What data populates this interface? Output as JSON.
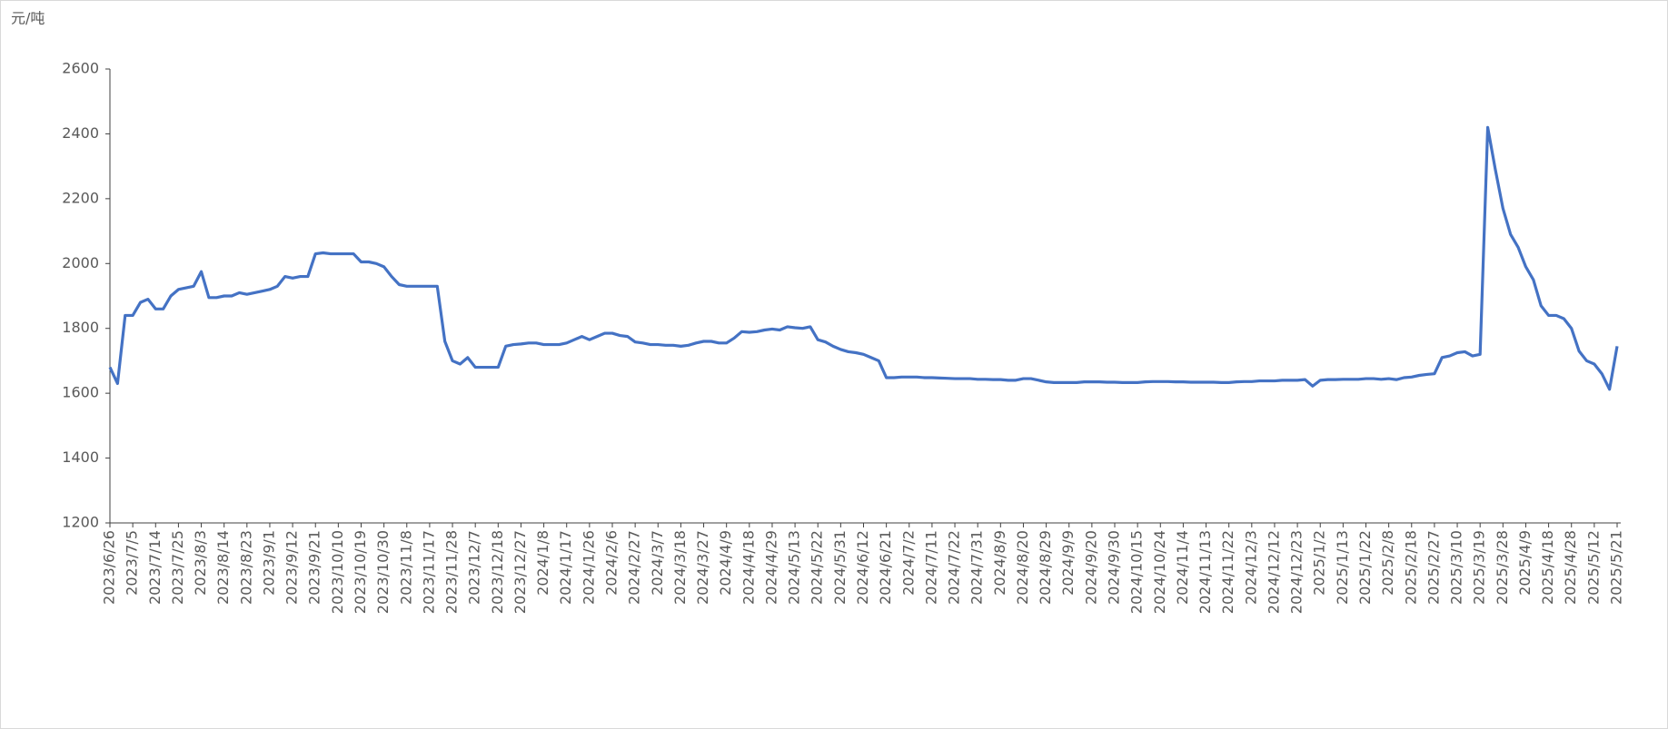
{
  "chart_data": {
    "type": "line",
    "y_label": "元/吨",
    "categories": [
      "2023/6/26",
      null,
      null,
      "2023/7/5",
      null,
      null,
      "2023/7/14",
      null,
      null,
      "2023/7/25",
      null,
      null,
      "2023/8/3",
      null,
      null,
      "2023/8/14",
      null,
      null,
      "2023/8/23",
      null,
      null,
      "2023/9/1",
      null,
      null,
      "2023/9/12",
      null,
      null,
      "2023/9/21",
      null,
      null,
      "2023/10/10",
      null,
      null,
      "2023/10/19",
      null,
      null,
      "2023/10/30",
      null,
      null,
      "2023/11/8",
      null,
      null,
      "2023/11/17",
      null,
      null,
      "2023/11/28",
      null,
      null,
      "2023/12/7",
      null,
      null,
      "2023/12/18",
      null,
      null,
      "2023/12/27",
      null,
      null,
      "2024/1/8",
      null,
      null,
      "2024/1/17",
      null,
      null,
      "2024/1/26",
      null,
      null,
      "2024/2/6",
      null,
      null,
      "2024/2/27",
      null,
      null,
      "2024/3/7",
      null,
      null,
      "2024/3/18",
      null,
      null,
      "2024/3/27",
      null,
      null,
      "2024/4/9",
      null,
      null,
      "2024/4/18",
      null,
      null,
      "2024/4/29",
      null,
      null,
      "2024/5/13",
      null,
      null,
      "2024/5/22",
      null,
      null,
      "2024/5/31",
      null,
      null,
      "2024/6/12",
      null,
      null,
      "2024/6/21",
      null,
      null,
      "2024/7/2",
      null,
      null,
      "2024/7/11",
      null,
      null,
      "2024/7/22",
      null,
      null,
      "2024/7/31",
      null,
      null,
      "2024/8/9",
      null,
      null,
      "2024/8/20",
      null,
      null,
      "2024/8/29",
      null,
      null,
      "2024/9/9",
      null,
      null,
      "2024/9/20",
      null,
      null,
      "2024/9/30",
      null,
      null,
      "2024/10/15",
      null,
      null,
      "2024/10/24",
      null,
      null,
      "2024/11/4",
      null,
      null,
      "2024/11/13",
      null,
      null,
      "2024/11/22",
      null,
      null,
      "2024/12/3",
      null,
      null,
      "2024/12/12",
      null,
      null,
      "2024/12/23",
      null,
      null,
      "2025/1/2",
      null,
      null,
      "2025/1/13",
      null,
      null,
      "2025/1/22",
      null,
      null,
      "2025/2/8",
      null,
      null,
      "2025/2/18",
      null,
      null,
      "2025/2/27",
      null,
      null,
      "2025/3/10",
      null,
      null,
      "2025/3/19",
      null,
      null,
      "2025/3/28",
      null,
      null,
      "2025/4/9",
      null,
      null,
      "2025/4/18",
      null,
      null,
      "2025/4/28",
      null,
      null,
      "2025/5/12",
      null,
      null,
      "2025/5/21"
    ],
    "values": [
      1680,
      1630,
      1840,
      1840,
      1880,
      1890,
      1860,
      1860,
      1900,
      1920,
      1925,
      1930,
      1975,
      1895,
      1895,
      1900,
      1900,
      1910,
      1905,
      1910,
      1915,
      1920,
      1930,
      1960,
      1955,
      1960,
      1960,
      2030,
      2033,
      2030,
      2030,
      2030,
      2030,
      2005,
      2005,
      2000,
      1990,
      1960,
      1935,
      1930,
      1930,
      1930,
      1930,
      1930,
      1760,
      1700,
      1690,
      1710,
      1680,
      1680,
      1680,
      1680,
      1745,
      1750,
      1752,
      1755,
      1755,
      1750,
      1750,
      1750,
      1755,
      1765,
      1775,
      1765,
      1775,
      1785,
      1785,
      1778,
      1775,
      1758,
      1755,
      1750,
      1750,
      1748,
      1748,
      1745,
      1748,
      1755,
      1760,
      1760,
      1755,
      1755,
      1770,
      1790,
      1788,
      1790,
      1795,
      1798,
      1795,
      1805,
      1802,
      1800,
      1805,
      1765,
      1758,
      1745,
      1735,
      1728,
      1725,
      1720,
      1710,
      1700,
      1648,
      1648,
      1650,
      1650,
      1650,
      1648,
      1648,
      1647,
      1646,
      1645,
      1645,
      1645,
      1643,
      1643,
      1642,
      1642,
      1640,
      1640,
      1645,
      1645,
      1640,
      1635,
      1633,
      1633,
      1633,
      1633,
      1635,
      1635,
      1635,
      1634,
      1634,
      1633,
      1633,
      1633,
      1635,
      1636,
      1636,
      1636,
      1635,
      1635,
      1634,
      1634,
      1634,
      1634,
      1633,
      1633,
      1635,
      1636,
      1636,
      1638,
      1638,
      1638,
      1640,
      1640,
      1640,
      1642,
      1622,
      1640,
      1642,
      1642,
      1643,
      1643,
      1643,
      1645,
      1645,
      1643,
      1645,
      1642,
      1648,
      1650,
      1655,
      1658,
      1660,
      1710,
      1715,
      1725,
      1728,
      1715,
      1720,
      2420,
      2290,
      2170,
      2090,
      2050,
      1990,
      1950,
      1870,
      1840,
      1840,
      1830,
      1800,
      1730,
      1700,
      1690,
      1660,
      1612,
      1745
    ],
    "color": "#4472c4",
    "ylim": [
      1200,
      2600
    ],
    "yticks": [
      1200,
      1400,
      1600,
      1800,
      2000,
      2200,
      2400,
      2600
    ]
  }
}
